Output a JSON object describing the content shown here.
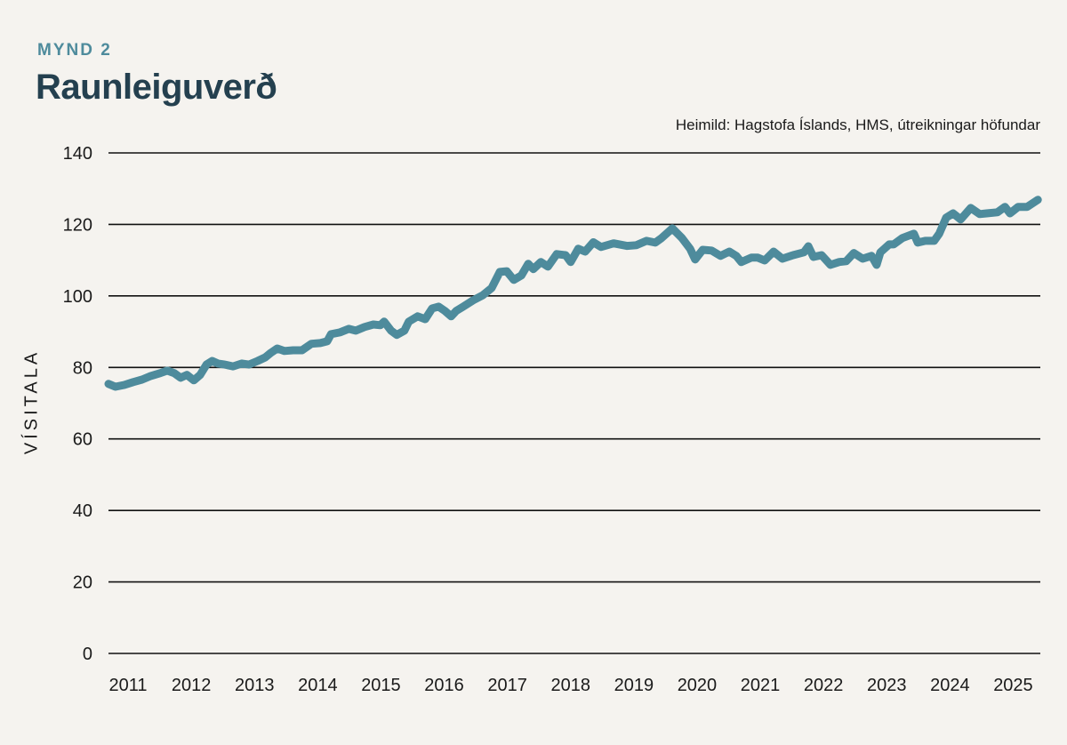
{
  "header": {
    "kicker": "MYND 2",
    "title": "Raunleiguverð",
    "source": "Heimild: Hagstofa Íslands, HMS, útreikningar höfundar"
  },
  "colors": {
    "line": "#4e8b9c",
    "grid": "#111111",
    "background": "#f5f3ef",
    "title": "#24404f"
  },
  "chart_data": {
    "type": "line",
    "title": "Raunleiguverð",
    "xlabel": "",
    "ylabel": "VÍSITALA",
    "ylim": [
      0,
      140
    ],
    "yticks": [
      0,
      20,
      40,
      60,
      80,
      100,
      120,
      140
    ],
    "xlim": [
      2011,
      2026
    ],
    "xticks": [
      "2011",
      "2012",
      "2013",
      "2014",
      "2015",
      "2016",
      "2017",
      "2018",
      "2019",
      "2020",
      "2021",
      "2022",
      "2023",
      "2024",
      "2025"
    ],
    "grid": "horizontal",
    "series": [
      {
        "x": [
          2011.19,
          2011.3,
          2011.44,
          2011.58,
          2011.72,
          2011.86,
          2012.01,
          2012.12,
          2012.23,
          2012.33,
          2012.43,
          2012.54,
          2012.64,
          2012.74,
          2012.83,
          2012.92,
          2013.03,
          2013.16,
          2013.3,
          2013.41,
          2013.55,
          2013.67,
          2013.76,
          2013.86,
          2013.97,
          2014.11,
          2014.25,
          2014.4,
          2014.54,
          2014.65,
          2014.71,
          2014.85,
          2014.99,
          2015.1,
          2015.24,
          2015.38,
          2015.49,
          2015.55,
          2015.66,
          2015.75,
          2015.87,
          2015.94,
          2016.08,
          2016.2,
          2016.31,
          2016.41,
          2016.51,
          2016.61,
          2016.69,
          2016.8,
          2016.96,
          2017.11,
          2017.25,
          2017.38,
          2017.49,
          2017.6,
          2017.72,
          2017.83,
          2017.91,
          2018.03,
          2018.14,
          2018.28,
          2018.42,
          2018.5,
          2018.62,
          2018.73,
          2018.86,
          2018.98,
          2019.18,
          2019.39,
          2019.54,
          2019.7,
          2019.84,
          2019.94,
          2020.11,
          2020.26,
          2020.39,
          2020.47,
          2020.59,
          2020.73,
          2020.87,
          2021.01,
          2021.12,
          2021.2,
          2021.36,
          2021.46,
          2021.57,
          2021.71,
          2021.85,
          2022.02,
          2022.19,
          2022.26,
          2022.34,
          2022.47,
          2022.61,
          2022.75,
          2022.86,
          2022.98,
          2023.12,
          2023.26,
          2023.34,
          2023.4,
          2023.54,
          2023.61,
          2023.75,
          2023.93,
          2023.99,
          2024.11,
          2024.25,
          2024.33,
          2024.44,
          2024.55,
          2024.67,
          2024.83,
          2024.97,
          2025.08,
          2025.25,
          2025.37,
          2025.45,
          2025.58,
          2025.72,
          2025.89
        ],
        "y": [
          75.4,
          74.6,
          75.1,
          75.9,
          76.6,
          77.6,
          78.4,
          79.1,
          78.4,
          77.1,
          77.9,
          76.4,
          77.9,
          80.8,
          81.8,
          81.1,
          80.8,
          80.3,
          81.1,
          80.8,
          81.8,
          82.8,
          84.1,
          85.3,
          84.6,
          84.8,
          84.8,
          86.6,
          86.8,
          87.3,
          89.3,
          89.8,
          90.8,
          90.3,
          91.3,
          92.0,
          91.8,
          92.8,
          90.3,
          89.1,
          90.3,
          92.8,
          94.3,
          93.5,
          96.5,
          97.0,
          95.8,
          94.3,
          95.8,
          97.0,
          98.8,
          100.2,
          102.2,
          106.7,
          106.9,
          104.5,
          105.7,
          109.0,
          107.5,
          109.5,
          108.2,
          111.7,
          111.4,
          109.5,
          113.2,
          112.4,
          115.0,
          113.7,
          114.7,
          114.0,
          114.2,
          115.4,
          114.9,
          116.2,
          118.9,
          116.2,
          113.2,
          110.2,
          112.9,
          112.7,
          111.2,
          112.4,
          111.2,
          109.5,
          110.7,
          110.7,
          109.9,
          112.4,
          110.4,
          111.4,
          112.2,
          113.9,
          110.9,
          111.4,
          108.7,
          109.5,
          109.7,
          112.0,
          110.4,
          111.2,
          108.7,
          112.2,
          114.4,
          114.4,
          116.2,
          117.4,
          114.9,
          115.4,
          115.4,
          117.4,
          121.9,
          123.1,
          121.4,
          124.6,
          122.9,
          123.1,
          123.4,
          124.9,
          123.1,
          124.9,
          124.9,
          126.9
        ]
      }
    ]
  }
}
